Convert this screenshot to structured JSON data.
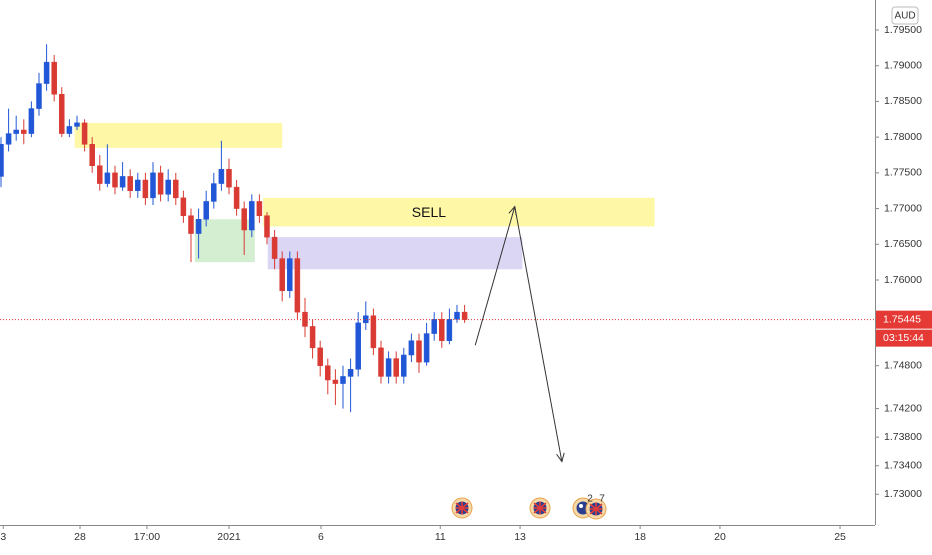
{
  "chart_data": {
    "type": "candlestick",
    "currency": "AUD",
    "open": [
      1.7745,
      1.779,
      1.7805,
      1.781,
      1.7805,
      1.784,
      1.7875,
      1.7905,
      1.786,
      1.7805,
      1.7815,
      1.782,
      1.779,
      1.776,
      1.7735,
      1.775,
      1.773,
      1.7745,
      1.7725,
      1.774,
      1.7715,
      1.775,
      1.772,
      1.774,
      1.7715,
      1.769,
      1.7665,
      1.7685,
      1.771,
      1.7735,
      1.7755,
      1.773,
      1.77,
      1.767,
      1.771,
      1.769,
      1.766,
      1.763,
      1.7585,
      1.763,
      1.7555,
      1.7535,
      1.7505,
      1.748,
      1.746,
      1.7455,
      1.7465,
      1.7475,
      1.754,
      1.755,
      1.7505,
      1.7465,
      1.749,
      1.7465,
      1.7495,
      1.7515,
      1.7485,
      1.7525,
      1.7545,
      1.7515,
      1.7545,
      1.7555
    ],
    "high": [
      1.78,
      1.784,
      1.783,
      1.7825,
      1.785,
      1.789,
      1.793,
      1.7915,
      1.787,
      1.7825,
      1.783,
      1.7825,
      1.78,
      1.7775,
      1.779,
      1.776,
      1.7765,
      1.7755,
      1.775,
      1.775,
      1.7765,
      1.776,
      1.7755,
      1.775,
      1.7725,
      1.77,
      1.77,
      1.7725,
      1.775,
      1.7795,
      1.777,
      1.774,
      1.771,
      1.772,
      1.772,
      1.7695,
      1.767,
      1.764,
      1.764,
      1.764,
      1.7575,
      1.7545,
      1.7515,
      1.749,
      1.7475,
      1.748,
      1.749,
      1.7555,
      1.757,
      1.756,
      1.7515,
      1.75,
      1.75,
      1.7505,
      1.7525,
      1.7525,
      1.754,
      1.7555,
      1.7555,
      1.756,
      1.7565,
      1.7565
    ],
    "low": [
      1.773,
      1.778,
      1.7795,
      1.779,
      1.78,
      1.783,
      1.7865,
      1.785,
      1.78,
      1.78,
      1.781,
      1.778,
      1.775,
      1.7725,
      1.773,
      1.772,
      1.7725,
      1.7715,
      1.7715,
      1.7705,
      1.7705,
      1.771,
      1.771,
      1.7705,
      1.768,
      1.7625,
      1.763,
      1.7675,
      1.77,
      1.7725,
      1.772,
      1.769,
      1.7635,
      1.766,
      1.768,
      1.765,
      1.7615,
      1.757,
      1.7575,
      1.7545,
      1.752,
      1.749,
      1.7465,
      1.744,
      1.7425,
      1.742,
      1.7415,
      1.7465,
      1.753,
      1.7495,
      1.7455,
      1.7455,
      1.7455,
      1.7455,
      1.7485,
      1.747,
      1.748,
      1.7515,
      1.7505,
      1.751,
      1.754,
      1.754
    ],
    "close": [
      1.779,
      1.7805,
      1.781,
      1.7805,
      1.784,
      1.7875,
      1.7905,
      1.786,
      1.7805,
      1.7815,
      1.782,
      1.779,
      1.776,
      1.7735,
      1.775,
      1.773,
      1.7745,
      1.7725,
      1.774,
      1.7715,
      1.775,
      1.772,
      1.774,
      1.7715,
      1.769,
      1.7665,
      1.7685,
      1.771,
      1.7735,
      1.7755,
      1.773,
      1.77,
      1.767,
      1.771,
      1.769,
      1.766,
      1.763,
      1.7585,
      1.763,
      1.7555,
      1.7535,
      1.7505,
      1.748,
      1.746,
      1.7455,
      1.7465,
      1.7475,
      1.754,
      1.755,
      1.7505,
      1.7465,
      1.749,
      1.7465,
      1.7495,
      1.7515,
      1.7485,
      1.7525,
      1.7545,
      1.7515,
      1.7545,
      1.7555,
      1.75445
    ],
    "up_color": "#2157d6",
    "down_color": "#d93a33",
    "xlim": [
      -0.13,
      115
    ],
    "ylim": [
      1.7257,
      1.7992
    ],
    "xticks": [
      {
        "value": 0.3,
        "label": "3"
      },
      {
        "value": 10.4,
        "label": "28"
      },
      {
        "value": 19.2,
        "label": "17:00"
      },
      {
        "value": 30,
        "label": "2021"
      },
      {
        "value": 42.1,
        "label": "6"
      },
      {
        "value": 57.8,
        "label": "11"
      },
      {
        "value": 68.3,
        "label": "13"
      },
      {
        "value": 84.1,
        "label": "18"
      },
      {
        "value": 94.6,
        "label": "20"
      },
      {
        "value": 110.4,
        "label": "25"
      }
    ],
    "yticks": [
      {
        "value": 1.795,
        "label": "1.79500"
      },
      {
        "value": 1.79,
        "label": "1.79000"
      },
      {
        "value": 1.785,
        "label": "1.78500"
      },
      {
        "value": 1.78,
        "label": "1.78000"
      },
      {
        "value": 1.775,
        "label": "1.77500"
      },
      {
        "value": 1.77,
        "label": "1.77000"
      },
      {
        "value": 1.765,
        "label": "1.76500"
      },
      {
        "value": 1.76,
        "label": "1.76000"
      },
      {
        "value": 1.748,
        "label": "1.74800"
      },
      {
        "value": 1.742,
        "label": "1.74200"
      },
      {
        "value": 1.738,
        "label": "1.73800"
      },
      {
        "value": 1.734,
        "label": "1.73400"
      },
      {
        "value": 1.73,
        "label": "1.73000"
      }
    ],
    "last_price": {
      "value": 1.75445,
      "label": "1.75445",
      "countdown": "03:15:44",
      "color": "#e53935"
    },
    "zones": [
      {
        "x": [
          9.7,
          37
        ],
        "y": [
          1.7785,
          1.782
        ],
        "color": "#fdf7a6"
      },
      {
        "x": [
          34.5,
          86
        ],
        "y": [
          1.7675,
          1.7715
        ],
        "color": "#fdf7a6",
        "label": "SELL"
      },
      {
        "x": [
          35.1,
          68.6
        ],
        "y": [
          1.7615,
          1.766
        ],
        "color": "#dcd6f5"
      },
      {
        "x": [
          25.5,
          33.4
        ],
        "y": [
          1.7625,
          1.7685
        ],
        "color": "#d3eed0"
      }
    ],
    "arrow": {
      "x": [
        62.4,
        67.6,
        73.8
      ],
      "y": [
        1.75087,
        1.77028,
        1.73458
      ]
    },
    "event_badges": [
      "2",
      "7"
    ]
  }
}
